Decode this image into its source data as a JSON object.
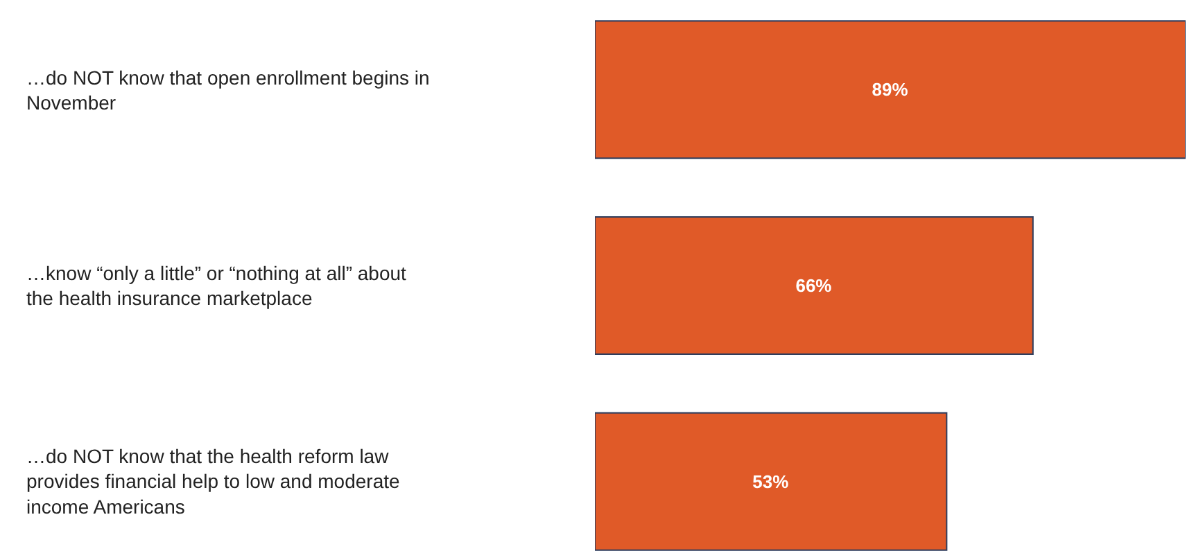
{
  "chart_data": {
    "type": "bar",
    "orientation": "horizontal",
    "categories": [
      "…do NOT know that open enrollment begins in November",
      "…know “only a little” or “nothing at all” about the health insurance marketplace",
      "…do NOT know that the health reform law provides financial help to low and moderate income Americans"
    ],
    "values": [
      89,
      66,
      53
    ],
    "value_labels": [
      "89%",
      "66%",
      "53%"
    ],
    "color": "#e05a28",
    "xlim": [
      0,
      89
    ],
    "tick_labels": "y",
    "legend": false
  }
}
